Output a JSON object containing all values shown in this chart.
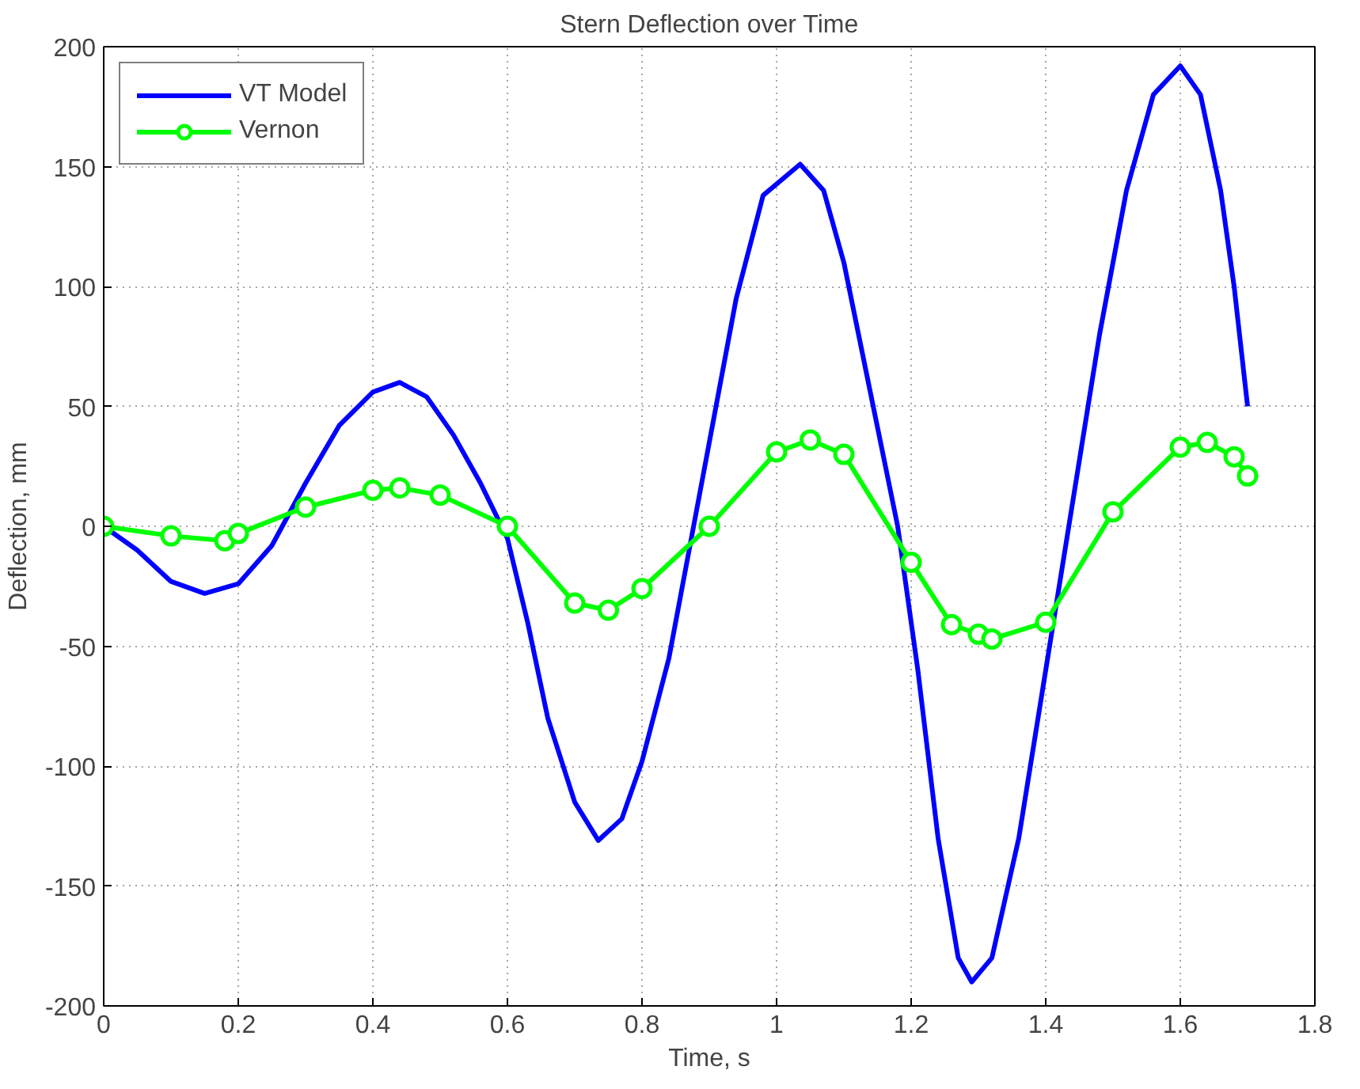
{
  "chart_data": {
    "type": "line",
    "title": "Stern Deflection over Time",
    "xlabel": "Time, s",
    "ylabel": "Deflection, mm",
    "xlim": [
      0,
      1.8
    ],
    "ylim": [
      -200,
      200
    ],
    "xticks": [
      0,
      0.2,
      0.4,
      0.6,
      0.8,
      1,
      1.2,
      1.4,
      1.6,
      1.8
    ],
    "yticks": [
      -200,
      -150,
      -100,
      -50,
      0,
      50,
      100,
      150,
      200
    ],
    "grid": true,
    "legend": "top left",
    "line_style": "solid",
    "series": [
      {
        "name": "VT Model",
        "color": "#0000ff",
        "marker": "none",
        "x": [
          0,
          0.05,
          0.1,
          0.15,
          0.2,
          0.25,
          0.3,
          0.35,
          0.4,
          0.44,
          0.48,
          0.52,
          0.56,
          0.6,
          0.63,
          0.66,
          0.7,
          0.735,
          0.77,
          0.8,
          0.84,
          0.87,
          0.9,
          0.94,
          0.98,
          1.035,
          1.07,
          1.1,
          1.14,
          1.18,
          1.21,
          1.24,
          1.27,
          1.29,
          1.32,
          1.36,
          1.4,
          1.44,
          1.48,
          1.52,
          1.56,
          1.6,
          1.63,
          1.66,
          1.68,
          1.7
        ],
        "values": [
          0,
          -10,
          -23,
          -28,
          -24,
          -8,
          18,
          42,
          56,
          60,
          54,
          38,
          18,
          -5,
          -40,
          -80,
          -115,
          -131,
          -122,
          -98,
          -55,
          -10,
          35,
          95,
          138,
          151,
          140,
          110,
          55,
          0,
          -60,
          -130,
          -180,
          -190,
          -180,
          -130,
          -60,
          10,
          80,
          140,
          180,
          192,
          180,
          140,
          100,
          50
        ]
      },
      {
        "name": "Vernon",
        "color": "#00ff00",
        "marker": "circle",
        "x": [
          0,
          0.1,
          0.18,
          0.2,
          0.3,
          0.4,
          0.44,
          0.5,
          0.6,
          0.7,
          0.75,
          0.8,
          0.9,
          1.0,
          1.05,
          1.1,
          1.2,
          1.26,
          1.3,
          1.32,
          1.4,
          1.5,
          1.6,
          1.64,
          1.68,
          1.7
        ],
        "values": [
          0,
          -4,
          -6,
          -3,
          8,
          15,
          16,
          13,
          0,
          -32,
          -35,
          -26,
          0,
          31,
          36,
          30,
          -15,
          -41,
          -45,
          -47,
          -40,
          6,
          33,
          35,
          29,
          21
        ]
      }
    ]
  }
}
